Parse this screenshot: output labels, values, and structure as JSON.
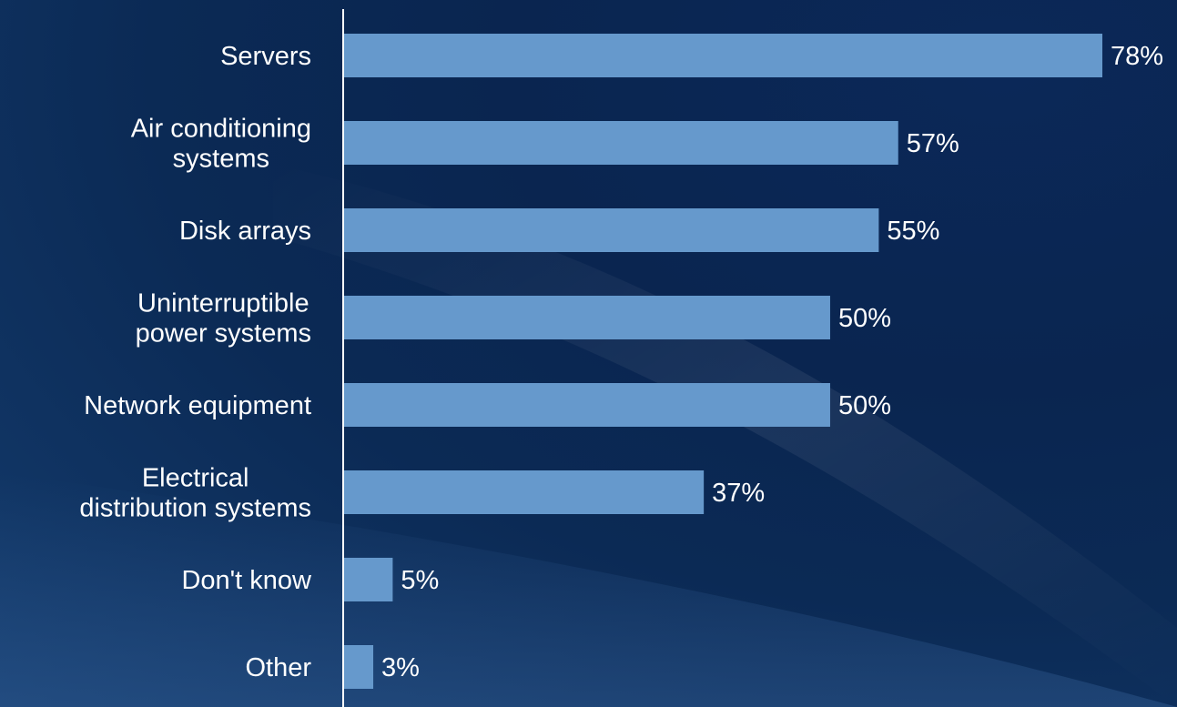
{
  "chart_data": {
    "type": "bar",
    "orientation": "horizontal",
    "title": "",
    "xlabel": "",
    "ylabel": "",
    "categories": [
      [
        "Servers"
      ],
      [
        "Air conditioning",
        "systems"
      ],
      [
        "Disk arrays"
      ],
      [
        "Uninterruptible",
        "power systems"
      ],
      [
        "Network equipment"
      ],
      [
        "Electrical",
        "distribution systems"
      ],
      [
        "Don't know"
      ],
      [
        "Other"
      ]
    ],
    "values": [
      78,
      57,
      55,
      50,
      50,
      37,
      5,
      3
    ],
    "value_labels": [
      "78%",
      "57%",
      "55%",
      "50%",
      "50%",
      "37%",
      "5%",
      "3%"
    ],
    "xlim": [
      0,
      100
    ],
    "grid": false,
    "legend": "none",
    "colors": {
      "bar": "#6699cc",
      "axis": "#ffffff",
      "text": "#ffffff",
      "background": "#0b2753"
    }
  }
}
